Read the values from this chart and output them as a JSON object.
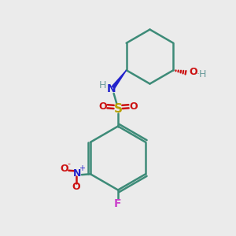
{
  "background_color": "#ebebeb",
  "bond_color": "#3d8b78",
  "N_color": "#2222cc",
  "S_color": "#b8a000",
  "O_color": "#cc1111",
  "F_color": "#cc44cc",
  "H_color": "#6a9a9a",
  "NO2_N_color": "#2222cc",
  "NO2_O_color": "#cc1111",
  "red_wedge_color": "#cc1111",
  "line_width": 1.8,
  "fig_width": 3.0,
  "fig_height": 3.0,
  "xlim": [
    0,
    10
  ],
  "ylim": [
    0,
    10
  ]
}
